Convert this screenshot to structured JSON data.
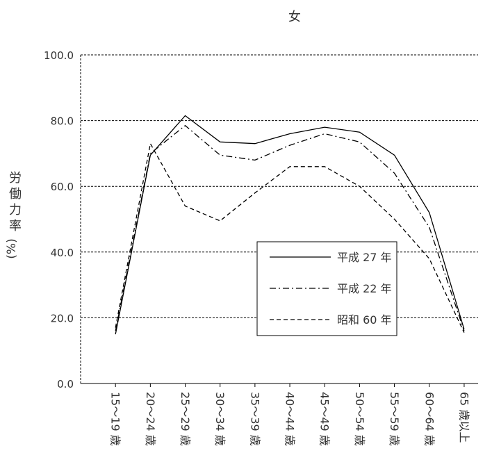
{
  "chart_data": {
    "type": "line",
    "title": "女",
    "ylabel": "労働力率(%)",
    "xlabel": "",
    "ylim": [
      0,
      100
    ],
    "yticks": [
      "0.0",
      "20.0",
      "40.0",
      "60.0",
      "80.0",
      "100.0"
    ],
    "categories": [
      "15～19 歳",
      "20～24 歳",
      "25～29 歳",
      "30～34 歳",
      "35～39 歳",
      "40～44 歳",
      "45～49 歳",
      "50～54 歳",
      "55～59 歳",
      "60～64 歳",
      "65 歳以上"
    ],
    "grid": "horizontal dashed",
    "legend_position": "right-center",
    "series": [
      {
        "name": "平成 27 年",
        "style": "solid",
        "values": [
          15.0,
          69.5,
          81.5,
          73.5,
          73.0,
          76.0,
          78.0,
          76.5,
          69.5,
          52.0,
          16.5
        ]
      },
      {
        "name": "平成 22 年",
        "style": "dash-dot",
        "values": [
          16.0,
          70.0,
          78.5,
          69.5,
          68.0,
          72.5,
          76.0,
          73.5,
          64.0,
          47.5,
          16.0
        ]
      },
      {
        "name": "昭和 60 年",
        "style": "dashed",
        "values": [
          17.0,
          73.0,
          54.0,
          49.5,
          58.0,
          66.0,
          66.0,
          60.0,
          50.0,
          38.0,
          15.5
        ]
      }
    ]
  }
}
